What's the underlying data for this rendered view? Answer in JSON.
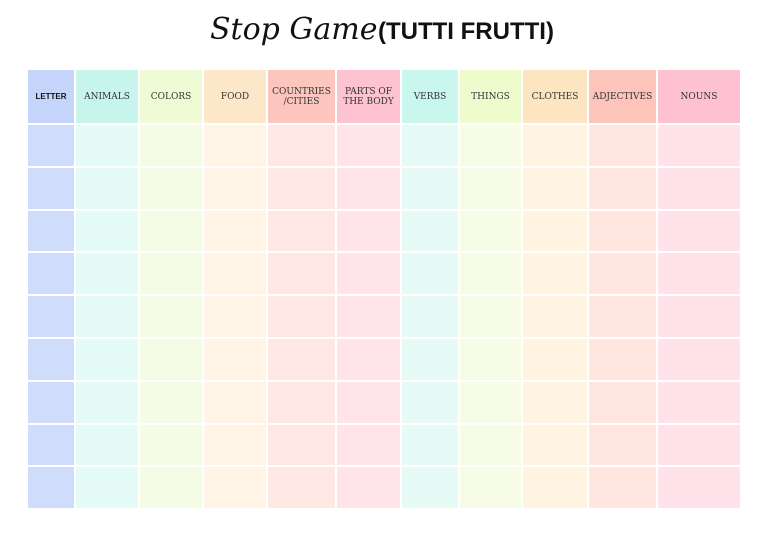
{
  "header": {
    "title": "Stop Game",
    "subtitle": "(TUTTI FRUTTI)"
  },
  "table": {
    "headers": [
      "LETTER",
      "ANIMALS",
      "COLORS",
      "FOOD",
      "COUNTRIES /CITIES",
      "PARTS OF THE BODY",
      "VERBS",
      "THINGS",
      "CLOTHES",
      "ADJECTIVES",
      "NOUNS"
    ]
  }
}
